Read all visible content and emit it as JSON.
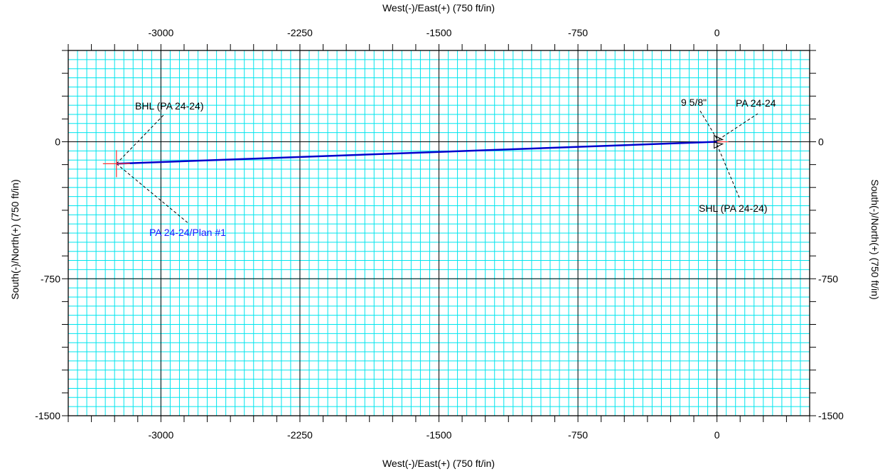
{
  "chart_data": {
    "type": "line",
    "title": "",
    "xlabel_top": "West(-)/East(+) (750 ft/in)",
    "xlabel_bottom": "West(-)/East(+) (750 ft/in)",
    "ylabel_left": "South(-)/North(+) (750 ft/in)",
    "ylabel_right": "South(-)/North(+) (750 ft/in)",
    "xlim": [
      -3500,
      500
    ],
    "ylim": [
      -1500,
      500
    ],
    "x_ticks": [
      {
        "value": -3000,
        "label": "-3000"
      },
      {
        "value": -2250,
        "label": "-2250"
      },
      {
        "value": -1500,
        "label": "-1500"
      },
      {
        "value": -750,
        "label": "-750"
      },
      {
        "value": 0,
        "label": "0"
      }
    ],
    "y_ticks": [
      {
        "value": 0,
        "label": "0"
      },
      {
        "value": -750,
        "label": "-750"
      },
      {
        "value": -1500,
        "label": "-1500"
      }
    ],
    "minor_grid_step": 50,
    "grid": true,
    "colors": {
      "minor_grid": "#00e5ee",
      "major_grid": "#000000",
      "well_path": "#0000cc",
      "marker": "#ff3333",
      "annotation_blue": "#1a1aff"
    },
    "series": [
      {
        "name": "PA 24-24/Plan #1",
        "x": [
          0,
          -3240
        ],
        "y": [
          0,
          -120
        ]
      }
    ],
    "points": [
      {
        "name": "SHL (PA 24-24)",
        "x": 0,
        "y": 0
      },
      {
        "name": "BHL (PA 24-24)",
        "x": -3240,
        "y": -120
      }
    ],
    "annotations": [
      {
        "text": "BHL  (PA 24-24)",
        "x": -3240,
        "y": -120
      },
      {
        "text": "PA  24-24/Plan  #1",
        "x": -3240,
        "y": -120
      },
      {
        "text": "9  5/8\"",
        "x": 0,
        "y": 0
      },
      {
        "text": "PA  24-24",
        "x": 0,
        "y": 0
      },
      {
        "text": "SHL  (PA 24-24)",
        "x": 0,
        "y": 0
      }
    ]
  }
}
